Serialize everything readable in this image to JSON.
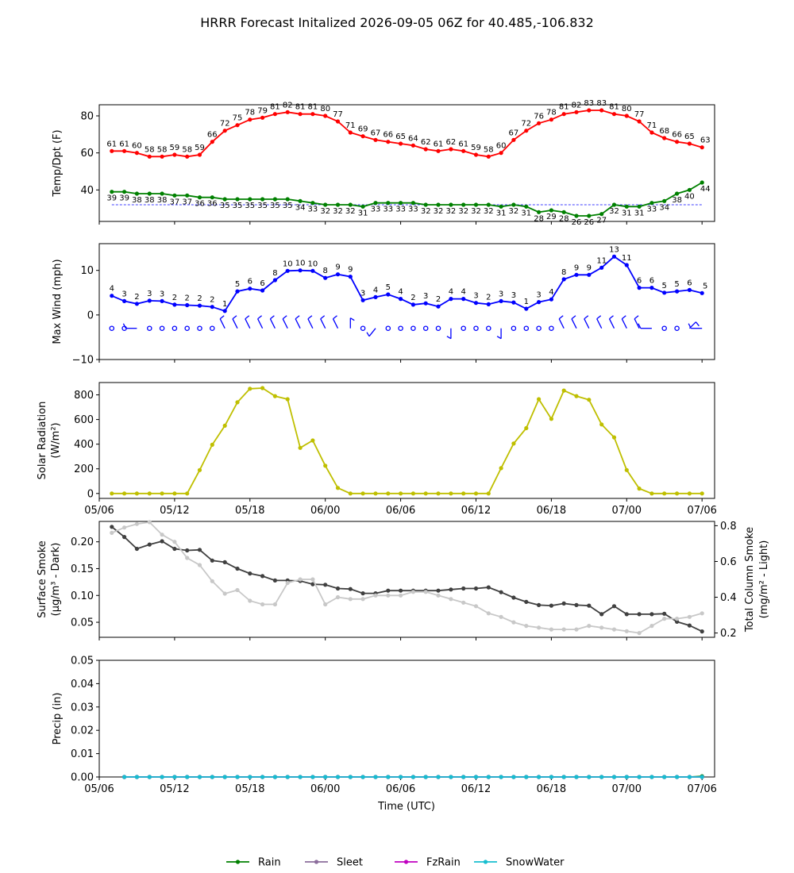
{
  "title": "HRRR Forecast Initalized 2026-09-05 06Z for 40.485,-106.832",
  "x_axis": {
    "label": "Time (UTC)",
    "ticks": [
      {
        "h": 0,
        "label": "05/06"
      },
      {
        "h": 6,
        "label": "05/12"
      },
      {
        "h": 12,
        "label": "05/18"
      },
      {
        "h": 18,
        "label": "06/00"
      },
      {
        "h": 24,
        "label": "06/06"
      },
      {
        "h": 30,
        "label": "06/12"
      },
      {
        "h": 36,
        "label": "06/18"
      },
      {
        "h": 42,
        "label": "07/00"
      },
      {
        "h": 48,
        "label": "07/06"
      }
    ],
    "range": [
      0,
      49
    ]
  },
  "colors": {
    "temp": "#ff0000",
    "dewpoint": "#008000",
    "wind": "#0000ff",
    "solar": "#bfbf00",
    "smoke_surface": "#404040",
    "smoke_column": "#c8c8c8",
    "rain": "#008000",
    "sleet": "#8c6d9c",
    "fzrain": "#c000c0",
    "snowwater": "#17becf"
  },
  "chart_data": [
    {
      "type": "line",
      "ylabel": "Temp/Dpt (F)",
      "ylim": [
        23,
        86
      ],
      "yticks": [
        40,
        60,
        80
      ],
      "x_start": 1,
      "series": [
        {
          "key": "temp",
          "values": [
            61,
            61,
            60,
            58,
            58,
            59,
            58,
            59,
            66,
            72,
            75,
            78,
            79,
            81,
            82,
            81,
            81,
            80,
            77,
            71,
            69,
            67,
            66,
            65,
            64,
            62,
            61,
            62,
            61,
            59,
            58,
            60,
            67,
            72,
            76,
            78,
            81,
            82,
            83,
            83,
            81,
            80,
            77,
            71,
            68,
            66,
            65,
            63
          ],
          "labels": [
            "61",
            "61",
            "60",
            "58",
            "58",
            "59",
            "58",
            "59",
            "66",
            "72",
            "75",
            "78",
            "79",
            "81",
            "82",
            "81",
            "81",
            "80",
            "77",
            "71",
            "69",
            "67",
            "66",
            "65",
            "64",
            "62",
            "61",
            "62",
            "61",
            "59",
            "58",
            "60",
            "67",
            "72",
            "76",
            "78",
            "81",
            "82",
            "83",
            "83",
            "81",
            "80",
            "77",
            "71",
            "68",
            "66",
            "65",
            "63"
          ]
        },
        {
          "key": "dewpoint",
          "values": [
            39,
            39,
            38,
            38,
            38,
            37,
            37,
            36,
            36,
            35,
            35,
            35,
            35,
            35,
            35,
            34,
            33,
            32,
            32,
            32,
            31,
            33,
            33,
            33,
            33,
            32,
            32,
            32,
            32,
            32,
            32,
            31,
            32,
            31,
            28,
            29,
            28,
            26,
            26,
            27,
            32,
            31,
            31,
            33,
            34,
            38,
            40,
            44
          ],
          "labels": [
            "39",
            "39",
            "38",
            "38",
            "38",
            "37",
            "37",
            "36",
            "36",
            "35",
            "35",
            "35",
            "35",
            "35",
            "35",
            "34",
            "33",
            "32",
            "32",
            "32",
            "31",
            "33",
            "33",
            "33",
            "33",
            "32",
            "32",
            "32",
            "32",
            "32",
            "32",
            "31",
            "32",
            "31",
            "28",
            "29",
            "28",
            "26",
            "26",
            "27",
            "32",
            "31",
            "31",
            "33",
            "34",
            "38",
            "40",
            "44"
          ]
        }
      ],
      "freezing_line": 32
    },
    {
      "type": "line",
      "ylabel": "Max Wind (mph)",
      "ylim": [
        -10,
        16
      ],
      "yticks": [
        -10,
        0,
        10
      ],
      "x_start": 1,
      "series": [
        {
          "key": "wind",
          "values": [
            4.3,
            3.1,
            2.5,
            3.2,
            3.1,
            2.3,
            2.2,
            2.1,
            1.8,
            0.9,
            5.3,
            5.9,
            5.5,
            7.8,
            9.9,
            10.0,
            9.9,
            8.3,
            9.1,
            8.6,
            3.3,
            4.0,
            4.6,
            3.6,
            2.3,
            2.6,
            1.9,
            3.6,
            3.6,
            2.7,
            2.4,
            3.1,
            2.8,
            1.4,
            2.9,
            3.5,
            8.0,
            9.0,
            9.0,
            10.6,
            13.1,
            11.2,
            6.1,
            6.1,
            5.0,
            5.3,
            5.6,
            4.9
          ],
          "labels": [
            "4",
            "3",
            "2",
            "3",
            "3",
            "2",
            "2",
            "2",
            "2",
            "1",
            "5",
            "6",
            "6",
            "8",
            "10",
            "10",
            "10",
            "8",
            "9",
            "9",
            "3",
            "4",
            "5",
            "4",
            "2",
            "3",
            "2",
            "4",
            "4",
            "3",
            "2",
            "3",
            "3",
            "1",
            "3",
            "4",
            "8",
            "9",
            "9",
            "11",
            "13",
            "11",
            "6",
            "6",
            "5",
            "5",
            "6",
            "5"
          ]
        }
      ],
      "barbs_y": -3,
      "barbs": [
        "calm",
        "calm",
        "w",
        "calm",
        "calm",
        "calm",
        "calm",
        "calm",
        "calm",
        "nw",
        "nw",
        "nw",
        "nw",
        "nw",
        "nw",
        "nw",
        "nw",
        "nw",
        "nw",
        "n",
        "calm",
        "sw",
        "calm",
        "calm",
        "calm",
        "calm",
        "calm",
        "s",
        "calm",
        "calm",
        "calm",
        "s",
        "calm",
        "calm",
        "calm",
        "calm",
        "nw",
        "nw",
        "nw",
        "nw",
        "nw",
        "nw",
        "nw",
        "w",
        "calm",
        "calm",
        "ne",
        "w"
      ]
    },
    {
      "type": "line",
      "ylabel": "Solar Radiation",
      "ylabel2": "(W/m²)",
      "ylim": [
        -40,
        900
      ],
      "yticks": [
        0,
        200,
        400,
        600,
        800
      ],
      "x_start": 1,
      "series": [
        {
          "key": "solar",
          "values": [
            0,
            0,
            0,
            0,
            0,
            0,
            0,
            190,
            395,
            550,
            740,
            850,
            855,
            790,
            765,
            370,
            430,
            225,
            45,
            0,
            0,
            0,
            0,
            0,
            0,
            0,
            0,
            0,
            0,
            0,
            0,
            205,
            405,
            530,
            765,
            605,
            835,
            790,
            760,
            560,
            455,
            190,
            40,
            0,
            0,
            0,
            0,
            0
          ]
        }
      ]
    },
    {
      "type": "line",
      "ylabel": "Surface Smoke",
      "ylabel2": "(μg/m³ - Dark)",
      "ylabel_right": "Total Column Smoke",
      "ylabel_right2": "(mg/m² - Light)",
      "ylim": [
        0.022,
        0.238
      ],
      "yticks": [
        0.05,
        0.1,
        0.15,
        0.2
      ],
      "ylim_right": [
        0.176,
        0.824
      ],
      "yticks_right": [
        0.2,
        0.4,
        0.6,
        0.8
      ],
      "x_start": 1,
      "series": [
        {
          "key": "smoke_surface",
          "axis": "left",
          "values": [
            0.228,
            0.209,
            0.187,
            0.195,
            0.201,
            0.187,
            0.184,
            0.185,
            0.165,
            0.162,
            0.15,
            0.141,
            0.136,
            0.128,
            0.128,
            0.127,
            0.121,
            0.12,
            0.113,
            0.112,
            0.104,
            0.104,
            0.109,
            0.109,
            0.109,
            0.109,
            0.109,
            0.111,
            0.113,
            0.113,
            0.115,
            0.106,
            0.096,
            0.088,
            0.082,
            0.081,
            0.085,
            0.082,
            0.081,
            0.065,
            0.08,
            0.065,
            0.065,
            0.065,
            0.066,
            0.051,
            0.044,
            0.033
          ]
        },
        {
          "key": "smoke_column",
          "axis": "right",
          "values": [
            0.76,
            0.79,
            0.81,
            0.82,
            0.75,
            0.71,
            0.62,
            0.58,
            0.49,
            0.42,
            0.44,
            0.38,
            0.36,
            0.36,
            0.48,
            0.5,
            0.5,
            0.36,
            0.4,
            0.39,
            0.39,
            0.41,
            0.41,
            0.41,
            0.43,
            0.43,
            0.41,
            0.39,
            0.37,
            0.35,
            0.31,
            0.29,
            0.26,
            0.24,
            0.23,
            0.22,
            0.22,
            0.22,
            0.24,
            0.23,
            0.22,
            0.21,
            0.2,
            0.24,
            0.28,
            0.28,
            0.29,
            0.31
          ]
        }
      ]
    },
    {
      "type": "line",
      "ylabel": "Precip (in)",
      "ylim": [
        0,
        0.05
      ],
      "yticks": [
        "0.00",
        "0.01",
        "0.02",
        "0.03",
        "0.04",
        "0.05"
      ],
      "x_start": 2,
      "series": [
        {
          "key": "rain",
          "name": "Rain",
          "values": [
            0,
            0,
            0,
            0,
            0,
            0,
            0,
            0,
            0,
            0,
            0,
            0,
            0,
            0,
            0,
            0,
            0,
            0,
            0,
            0,
            0,
            0,
            0,
            0,
            0,
            0,
            0,
            0,
            0,
            0,
            0,
            0,
            0,
            0,
            0,
            0,
            0,
            0,
            0,
            0,
            0,
            0,
            0,
            0,
            0,
            0,
            0.0003
          ]
        },
        {
          "key": "sleet",
          "name": "Sleet",
          "values": [
            0,
            0,
            0,
            0,
            0,
            0,
            0,
            0,
            0,
            0,
            0,
            0,
            0,
            0,
            0,
            0,
            0,
            0,
            0,
            0,
            0,
            0,
            0,
            0,
            0,
            0,
            0,
            0,
            0,
            0,
            0,
            0,
            0,
            0,
            0,
            0,
            0,
            0,
            0,
            0,
            0,
            0,
            0,
            0,
            0,
            0,
            0
          ]
        },
        {
          "key": "fzrain",
          "name": "FzRain",
          "values": [
            0,
            0,
            0,
            0,
            0,
            0,
            0,
            0,
            0,
            0,
            0,
            0,
            0,
            0,
            0,
            0,
            0,
            0,
            0,
            0,
            0,
            0,
            0,
            0,
            0,
            0,
            0,
            0,
            0,
            0,
            0,
            0,
            0,
            0,
            0,
            0,
            0,
            0,
            0,
            0,
            0,
            0,
            0,
            0,
            0,
            0,
            0
          ]
        },
        {
          "key": "snowwater",
          "name": "SnowWater",
          "values": [
            0,
            0,
            0,
            0,
            0,
            0,
            0,
            0,
            0,
            0,
            0,
            0,
            0,
            0,
            0,
            0,
            0,
            0,
            0,
            0,
            0,
            0,
            0,
            0,
            0,
            0,
            0,
            0,
            0,
            0,
            0,
            0,
            0,
            0,
            0,
            0,
            0,
            0,
            0,
            0,
            0,
            0,
            0,
            0,
            0,
            0,
            0
          ]
        }
      ]
    }
  ],
  "legend": {
    "placement": "bottom-center",
    "items": [
      "Rain",
      "Sleet",
      "FzRain",
      "SnowWater"
    ]
  }
}
